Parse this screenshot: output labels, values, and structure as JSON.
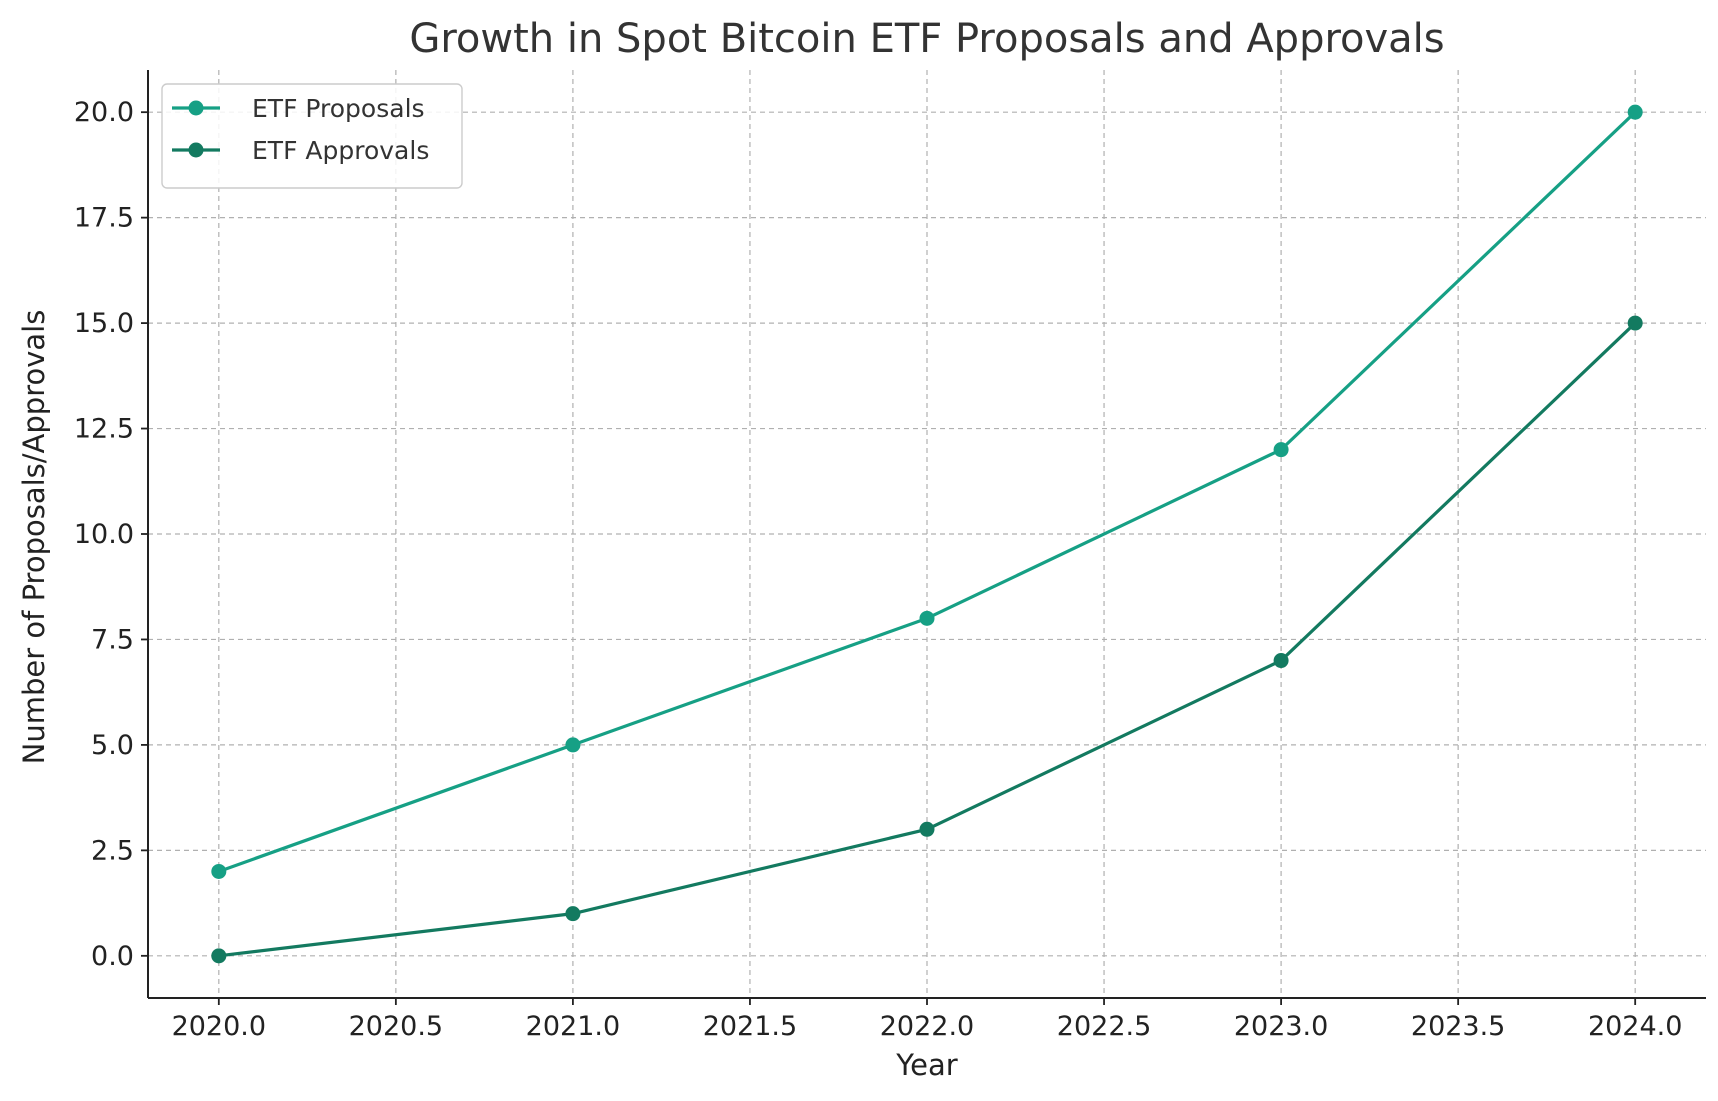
{
  "chart_data": {
    "type": "line",
    "title": "Growth in Spot Bitcoin ETF Proposals and Approvals",
    "xlabel": "Year",
    "ylabel": "Number of Proposals/Approvals",
    "xlim": [
      2019.8,
      2024.2
    ],
    "ylim": [
      -1.0,
      21.0
    ],
    "x_ticks": [
      2020.0,
      2020.5,
      2021.0,
      2021.5,
      2022.0,
      2022.5,
      2023.0,
      2023.5,
      2024.0
    ],
    "x_tick_labels": [
      "2020.0",
      "2020.5",
      "2021.0",
      "2021.5",
      "2022.0",
      "2022.5",
      "2023.0",
      "2023.5",
      "2024.0"
    ],
    "y_ticks": [
      0.0,
      2.5,
      5.0,
      7.5,
      10.0,
      12.5,
      15.0,
      17.5,
      20.0
    ],
    "y_tick_labels": [
      "0.0",
      "2.5",
      "5.0",
      "7.5",
      "10.0",
      "12.5",
      "15.0",
      "17.5",
      "20.0"
    ],
    "x": [
      2020,
      2021,
      2022,
      2023,
      2024
    ],
    "series": [
      {
        "name": "ETF Proposals",
        "color": "#16a085",
        "values": [
          2,
          5,
          8,
          12,
          20
        ]
      },
      {
        "name": "ETF Approvals",
        "color": "#137a60",
        "values": [
          0,
          1,
          3,
          7,
          15
        ]
      }
    ],
    "grid": true,
    "legend_position": "top-left"
  }
}
